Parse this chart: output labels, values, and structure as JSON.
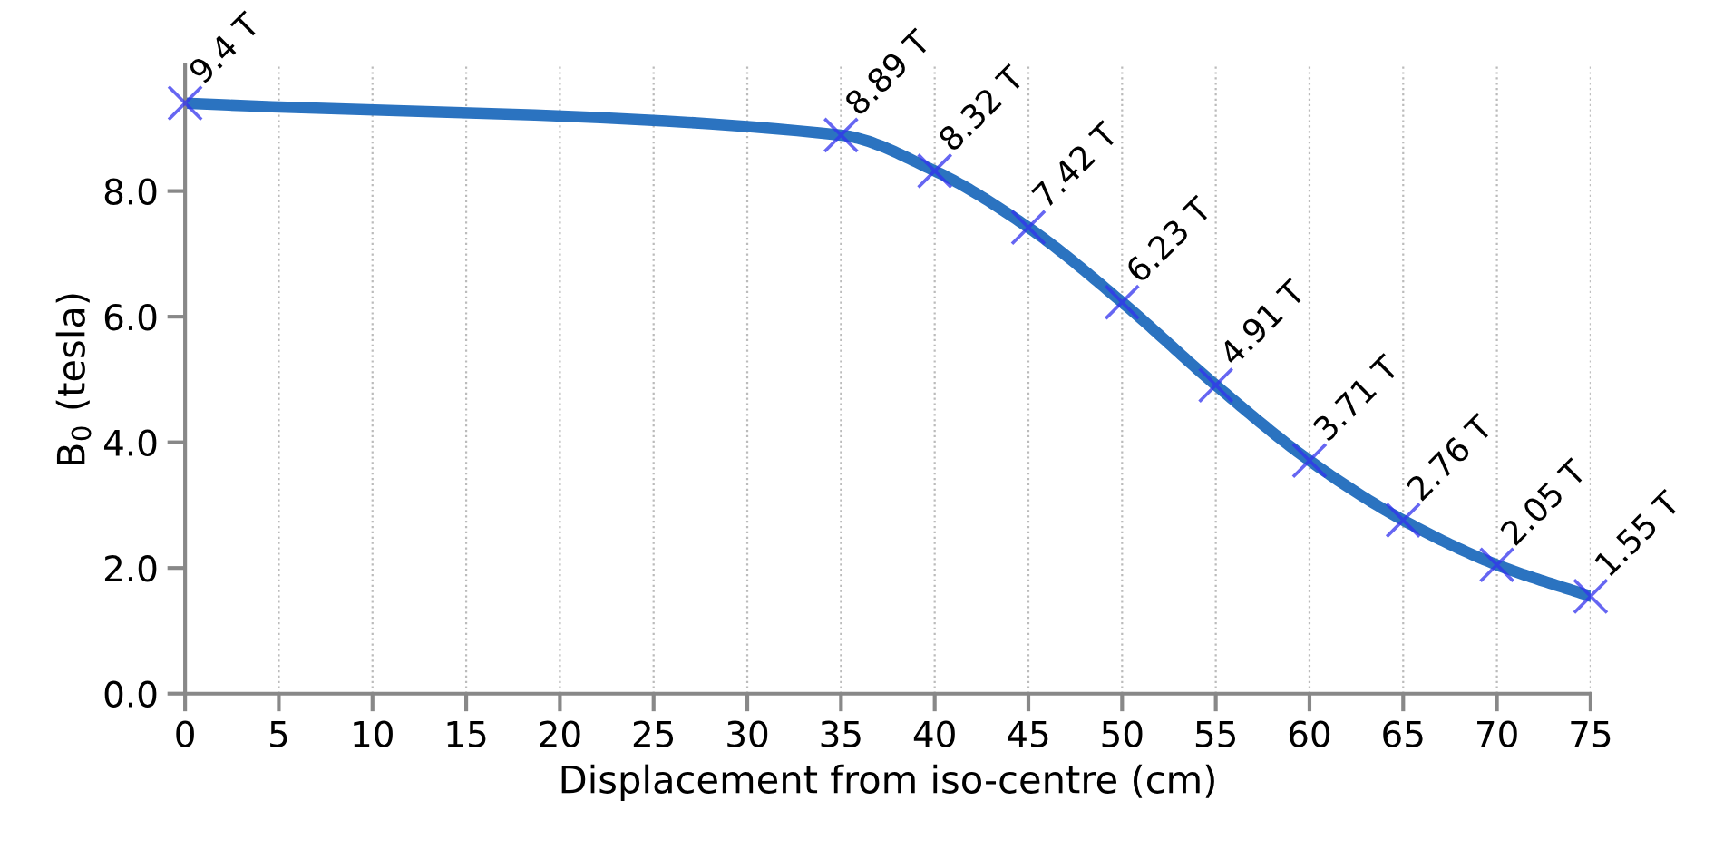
{
  "chart_data": {
    "type": "line",
    "xlabel": "Displacement from iso-centre (cm)",
    "ylabel": "B$_{0}$ (tesla)",
    "x": [
      0,
      35,
      40,
      45,
      50,
      55,
      60,
      65,
      70,
      75
    ],
    "series": [
      {
        "color": "#2b73c0",
        "values": [
          9.4,
          8.89,
          8.32,
          7.42,
          6.23,
          4.91,
          3.71,
          2.76,
          2.05,
          1.55
        ],
        "value_labels": [
          "9.4 T",
          "8.89 T",
          "8.32 T",
          "7.42 T",
          "6.23 T",
          "4.91 T",
          "3.71 T",
          "2.76 T",
          "2.05 T",
          "1.55 T"
        ]
      }
    ],
    "xlim": [
      0,
      75
    ],
    "xticks": [
      0,
      5,
      10,
      15,
      20,
      25,
      30,
      35,
      40,
      45,
      50,
      55,
      60,
      65,
      70,
      75
    ],
    "ylim": [
      0,
      10
    ],
    "yticks": [
      {
        "value": 0,
        "label": "0.0"
      },
      {
        "value": 2,
        "label": "2.0"
      },
      {
        "value": 4,
        "label": "4.0"
      },
      {
        "value": 6,
        "label": "6.0"
      },
      {
        "value": 8,
        "label": "8.0"
      }
    ],
    "grid": "x",
    "marker": "cross",
    "line_style": "solid"
  }
}
